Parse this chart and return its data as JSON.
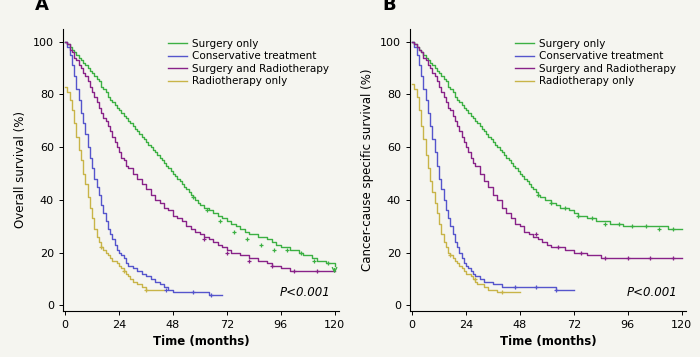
{
  "panel_A": {
    "title": "A",
    "ylabel": "Overall survival (%)",
    "xlabel": "Time (months)",
    "ylim": [
      -2,
      105
    ],
    "xlim": [
      -1,
      122
    ],
    "xticks": [
      0,
      24,
      48,
      72,
      96,
      120
    ],
    "yticks": [
      0,
      20,
      40,
      60,
      80,
      100
    ],
    "pvalue": "P<0.001",
    "curves": {
      "surgery_only": {
        "color": "#3cb043",
        "label": "Surgery only",
        "t": [
          0,
          1,
          2,
          3,
          4,
          5,
          6,
          7,
          8,
          9,
          10,
          11,
          12,
          13,
          14,
          15,
          16,
          17,
          18,
          19,
          20,
          21,
          22,
          23,
          24,
          25,
          26,
          27,
          28,
          29,
          30,
          31,
          32,
          33,
          34,
          35,
          36,
          37,
          38,
          39,
          40,
          41,
          42,
          43,
          44,
          45,
          46,
          47,
          48,
          49,
          50,
          51,
          52,
          53,
          54,
          55,
          56,
          57,
          58,
          59,
          60,
          62,
          64,
          66,
          68,
          70,
          72,
          74,
          76,
          78,
          80,
          82,
          84,
          86,
          88,
          90,
          92,
          94,
          96,
          98,
          100,
          102,
          104,
          106,
          108,
          110,
          112,
          114,
          116,
          118,
          120
        ],
        "s": [
          100,
          99,
          98,
          97,
          96,
          95,
          94,
          93,
          92,
          91,
          90,
          89,
          88,
          87,
          86,
          85,
          83,
          82,
          81,
          79,
          78,
          77,
          76,
          75,
          74,
          73,
          72,
          71,
          70,
          69,
          68,
          67,
          66,
          65,
          64,
          63,
          62,
          61,
          60,
          59,
          58,
          57,
          56,
          55,
          54,
          53,
          52,
          51,
          50,
          49,
          48,
          47,
          46,
          45,
          44,
          43,
          42,
          41,
          40,
          39,
          38,
          37,
          36,
          35,
          34,
          33,
          32,
          31,
          30,
          29,
          28,
          27,
          27,
          26,
          26,
          25,
          24,
          23,
          22,
          22,
          21,
          21,
          20,
          19,
          19,
          18,
          17,
          17,
          16,
          16,
          15
        ],
        "censor_t": [
          57,
          63,
          69,
          75,
          81,
          87,
          93,
          99,
          105,
          111,
          117
        ],
        "censor_s": [
          41,
          36,
          32,
          28,
          25,
          23,
          21,
          21,
          20,
          17,
          16
        ],
        "end_arrow": true,
        "end_t": 120,
        "end_s": 15
      },
      "conservative": {
        "color": "#5555cc",
        "label": "Conservative treatment",
        "t": [
          0,
          1,
          2,
          3,
          4,
          5,
          6,
          7,
          8,
          9,
          10,
          11,
          12,
          13,
          14,
          15,
          16,
          17,
          18,
          19,
          20,
          21,
          22,
          23,
          24,
          25,
          26,
          27,
          28,
          30,
          32,
          34,
          36,
          38,
          40,
          42,
          44,
          46,
          48,
          50,
          52,
          54,
          56,
          58,
          60,
          62,
          64,
          66,
          68,
          70
        ],
        "s": [
          100,
          98,
          95,
          91,
          87,
          82,
          78,
          73,
          69,
          65,
          60,
          56,
          52,
          48,
          45,
          42,
          38,
          35,
          32,
          29,
          27,
          25,
          23,
          21,
          20,
          19,
          18,
          16,
          15,
          14,
          13,
          12,
          11,
          10,
          9,
          8,
          7,
          6,
          5,
          5,
          5,
          5,
          5,
          5,
          5,
          5,
          4,
          4,
          4,
          4
        ],
        "censor_t": [
          45,
          57,
          65
        ],
        "censor_s": [
          6,
          5,
          4
        ],
        "end_arrow": false,
        "end_t": null,
        "end_s": null
      },
      "surgery_radio": {
        "color": "#882288",
        "label": "Surgery and Radiotherapy",
        "t": [
          0,
          1,
          2,
          3,
          4,
          5,
          6,
          7,
          8,
          9,
          10,
          11,
          12,
          13,
          14,
          15,
          16,
          17,
          18,
          19,
          20,
          21,
          22,
          23,
          24,
          25,
          26,
          27,
          28,
          30,
          32,
          34,
          36,
          38,
          40,
          42,
          44,
          46,
          48,
          50,
          52,
          54,
          56,
          58,
          60,
          62,
          64,
          66,
          68,
          70,
          72,
          74,
          76,
          78,
          80,
          82,
          84,
          86,
          88,
          90,
          92,
          94,
          96,
          98,
          100,
          102,
          104,
          106,
          108,
          110,
          112,
          114,
          116,
          118,
          120
        ],
        "s": [
          100,
          99,
          97,
          96,
          94,
          93,
          91,
          90,
          88,
          87,
          85,
          83,
          81,
          79,
          77,
          75,
          73,
          71,
          70,
          68,
          66,
          64,
          62,
          60,
          58,
          56,
          55,
          53,
          52,
          50,
          48,
          46,
          44,
          42,
          40,
          39,
          37,
          36,
          34,
          33,
          32,
          30,
          29,
          28,
          27,
          26,
          25,
          24,
          23,
          22,
          21,
          20,
          20,
          19,
          19,
          18,
          18,
          17,
          17,
          16,
          15,
          15,
          14,
          14,
          13,
          13,
          13,
          13,
          13,
          13,
          13,
          13,
          13,
          13,
          13
        ],
        "censor_t": [
          62,
          72,
          82,
          92,
          102,
          112
        ],
        "censor_s": [
          25,
          20,
          17,
          15,
          13,
          13
        ],
        "end_arrow": false,
        "end_t": null,
        "end_s": null
      },
      "radio_only": {
        "color": "#c8b448",
        "label": "Radiotherapy only",
        "t": [
          0,
          1,
          2,
          3,
          4,
          5,
          6,
          7,
          8,
          9,
          10,
          11,
          12,
          13,
          14,
          15,
          16,
          17,
          18,
          19,
          20,
          21,
          22,
          23,
          24,
          25,
          26,
          27,
          28,
          29,
          30,
          32,
          34,
          36,
          38,
          40,
          42,
          44
        ],
        "s": [
          83,
          81,
          78,
          74,
          69,
          64,
          59,
          55,
          50,
          46,
          41,
          37,
          33,
          29,
          26,
          24,
          22,
          21,
          20,
          19,
          18,
          17,
          17,
          16,
          15,
          14,
          13,
          12,
          11,
          10,
          9,
          8,
          7,
          6,
          6,
          6,
          6,
          6
        ],
        "censor_t": [
          16,
          26,
          36
        ],
        "censor_s": [
          22,
          13,
          6
        ],
        "end_arrow": false,
        "end_t": null,
        "end_s": null
      }
    }
  },
  "panel_B": {
    "title": "B",
    "ylabel": "Cancer-cause specific survival (%)",
    "xlabel": "Time (months)",
    "ylim": [
      -2,
      105
    ],
    "xlim": [
      -1,
      122
    ],
    "xticks": [
      0,
      24,
      48,
      72,
      96,
      120
    ],
    "yticks": [
      0,
      20,
      40,
      60,
      80,
      100
    ],
    "pvalue": "P<0.001",
    "curves": {
      "surgery_only": {
        "color": "#3cb043",
        "label": "Surgery only",
        "t": [
          0,
          1,
          2,
          3,
          4,
          5,
          6,
          7,
          8,
          9,
          10,
          11,
          12,
          13,
          14,
          15,
          16,
          17,
          18,
          19,
          20,
          21,
          22,
          23,
          24,
          25,
          26,
          27,
          28,
          29,
          30,
          31,
          32,
          33,
          34,
          35,
          36,
          37,
          38,
          39,
          40,
          41,
          42,
          43,
          44,
          45,
          46,
          47,
          48,
          49,
          50,
          51,
          52,
          53,
          54,
          55,
          56,
          57,
          58,
          59,
          60,
          62,
          64,
          66,
          68,
          70,
          72,
          74,
          76,
          78,
          80,
          82,
          84,
          86,
          88,
          90,
          92,
          94,
          96,
          98,
          100,
          102,
          104,
          106,
          108,
          110,
          112,
          114,
          116,
          118,
          120
        ],
        "s": [
          100,
          99,
          98,
          97,
          96,
          95,
          94,
          93,
          92,
          91,
          90,
          89,
          88,
          87,
          86,
          85,
          83,
          82,
          81,
          79,
          78,
          77,
          76,
          75,
          74,
          73,
          72,
          71,
          70,
          69,
          68,
          67,
          66,
          65,
          64,
          63,
          62,
          61,
          60,
          59,
          58,
          57,
          56,
          55,
          54,
          53,
          52,
          51,
          50,
          49,
          48,
          47,
          46,
          45,
          44,
          43,
          42,
          41,
          41,
          40,
          40,
          39,
          38,
          37,
          37,
          36,
          35,
          34,
          34,
          33,
          33,
          32,
          32,
          32,
          31,
          31,
          31,
          30,
          30,
          30,
          30,
          30,
          30,
          30,
          30,
          30,
          30,
          29,
          29,
          29,
          29
        ],
        "censor_t": [
          56,
          62,
          68,
          74,
          80,
          86,
          92,
          98,
          104,
          110,
          116
        ],
        "censor_s": [
          42,
          39,
          37,
          34,
          33,
          31,
          31,
          30,
          30,
          29,
          29
        ],
        "end_arrow": false,
        "end_t": null,
        "end_s": null
      },
      "conservative": {
        "color": "#5555cc",
        "label": "Conservative treatment",
        "t": [
          0,
          1,
          2,
          3,
          4,
          5,
          6,
          7,
          8,
          9,
          10,
          11,
          12,
          13,
          14,
          15,
          16,
          17,
          18,
          19,
          20,
          21,
          22,
          23,
          24,
          25,
          26,
          27,
          28,
          30,
          32,
          34,
          36,
          38,
          40,
          42,
          44,
          46,
          48,
          50,
          52,
          54,
          56,
          58,
          60,
          62,
          64,
          66,
          68,
          70,
          72
        ],
        "s": [
          100,
          98,
          95,
          91,
          87,
          82,
          78,
          73,
          68,
          63,
          58,
          53,
          48,
          44,
          40,
          36,
          33,
          30,
          27,
          24,
          22,
          20,
          18,
          16,
          15,
          14,
          13,
          12,
          11,
          10,
          9,
          9,
          8,
          8,
          7,
          7,
          7,
          7,
          7,
          7,
          7,
          7,
          7,
          7,
          7,
          7,
          6,
          6,
          6,
          6,
          6
        ],
        "censor_t": [
          46,
          55,
          64
        ],
        "censor_s": [
          7,
          7,
          6
        ],
        "end_arrow": false,
        "end_t": null,
        "end_s": null
      },
      "surgery_radio": {
        "color": "#882288",
        "label": "Surgery and Radiotherapy",
        "t": [
          0,
          1,
          2,
          3,
          4,
          5,
          6,
          7,
          8,
          9,
          10,
          11,
          12,
          13,
          14,
          15,
          16,
          17,
          18,
          19,
          20,
          21,
          22,
          23,
          24,
          25,
          26,
          27,
          28,
          30,
          32,
          34,
          36,
          38,
          40,
          42,
          44,
          46,
          48,
          50,
          52,
          54,
          56,
          58,
          60,
          62,
          64,
          66,
          68,
          70,
          72,
          74,
          76,
          78,
          80,
          82,
          84,
          86,
          88,
          90,
          92,
          94,
          96,
          98,
          100,
          102,
          104,
          106,
          108,
          110,
          112,
          114,
          116,
          118,
          120
        ],
        "s": [
          100,
          99,
          98,
          97,
          96,
          94,
          93,
          91,
          90,
          88,
          87,
          85,
          83,
          81,
          79,
          77,
          75,
          74,
          72,
          70,
          68,
          66,
          64,
          62,
          60,
          58,
          56,
          54,
          53,
          50,
          47,
          45,
          42,
          40,
          37,
          35,
          33,
          31,
          30,
          28,
          27,
          26,
          25,
          24,
          23,
          22,
          22,
          22,
          21,
          21,
          20,
          20,
          20,
          19,
          19,
          19,
          18,
          18,
          18,
          18,
          18,
          18,
          18,
          18,
          18,
          18,
          18,
          18,
          18,
          18,
          18,
          18,
          18,
          18,
          18
        ],
        "censor_t": [
          55,
          65,
          75,
          86,
          96,
          106,
          116
        ],
        "censor_s": [
          27,
          22,
          20,
          18,
          18,
          18,
          18
        ],
        "end_arrow": false,
        "end_t": null,
        "end_s": null
      },
      "radio_only": {
        "color": "#c8b448",
        "label": "Radiotherapy only",
        "t": [
          0,
          1,
          2,
          3,
          4,
          5,
          6,
          7,
          8,
          9,
          10,
          11,
          12,
          13,
          14,
          15,
          16,
          17,
          18,
          19,
          20,
          21,
          22,
          23,
          24,
          25,
          26,
          27,
          28,
          29,
          30,
          32,
          34,
          36,
          38,
          40,
          42,
          44,
          46,
          48
        ],
        "s": [
          84,
          82,
          79,
          74,
          68,
          63,
          57,
          52,
          47,
          43,
          39,
          35,
          31,
          27,
          24,
          22,
          20,
          19,
          18,
          17,
          16,
          15,
          14,
          13,
          12,
          12,
          11,
          10,
          9,
          8,
          8,
          7,
          6,
          6,
          5,
          5,
          5,
          5,
          5,
          5
        ],
        "censor_t": [
          17,
          28,
          40
        ],
        "censor_s": [
          19,
          10,
          5
        ],
        "end_arrow": false,
        "end_t": null,
        "end_s": null
      }
    }
  },
  "legend_labels": [
    "Surgery only",
    "Conservative treatment",
    "Surgery and Radiotherapy",
    "Radiotherapy only"
  ],
  "legend_colors": [
    "#3cb043",
    "#5555cc",
    "#882288",
    "#c8b448"
  ],
  "background_color": "#f5f5f0",
  "panel_label_fontsize": 13,
  "axis_label_fontsize": 8.5,
  "tick_fontsize": 8,
  "legend_fontsize": 7.5,
  "pvalue_fontsize": 8.5
}
